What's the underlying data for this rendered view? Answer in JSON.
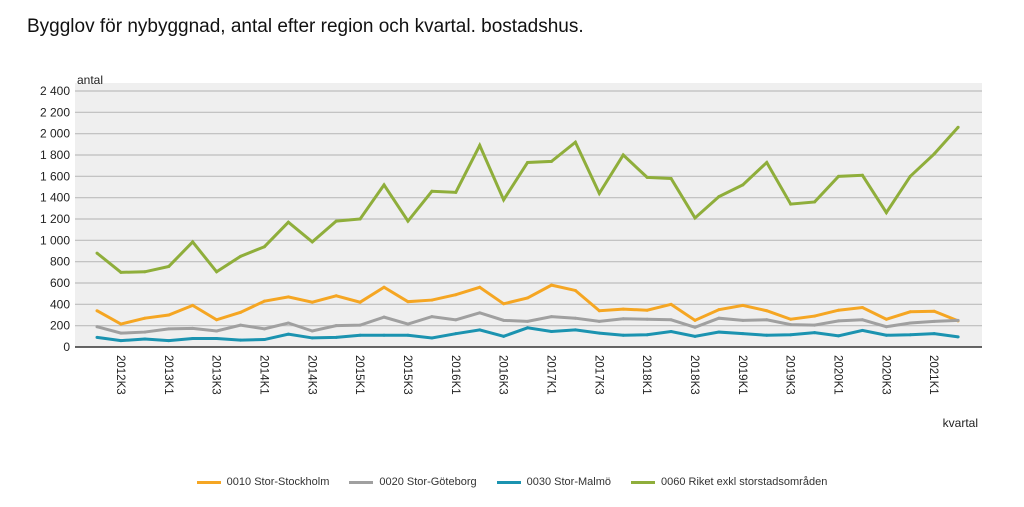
{
  "title": "Bygglov för nybyggnad, antal efter region och kvartal. bostadshus.",
  "chart_data": {
    "type": "line",
    "title": "Bygglov för nybyggnad, antal efter region och kvartal. bostadshus.",
    "xlabel": "kvartal",
    "ylabel": "antal",
    "ylim": [
      0,
      2400
    ],
    "yticks": [
      "0",
      "200",
      "400",
      "600",
      "800",
      "1 000",
      "1 200",
      "1 400",
      "1 600",
      "1 800",
      "2 000",
      "2 200",
      "2 400"
    ],
    "x": [
      "2012K2",
      "2012K3",
      "2012K4",
      "2013K1",
      "2013K2",
      "2013K3",
      "2013K4",
      "2014K1",
      "2014K2",
      "2014K3",
      "2014K4",
      "2015K1",
      "2015K2",
      "2015K3",
      "2015K4",
      "2016K1",
      "2016K2",
      "2016K3",
      "2016K4",
      "2017K1",
      "2017K2",
      "2017K3",
      "2017K4",
      "2018K1",
      "2018K2",
      "2018K3",
      "2018K4",
      "2019K1",
      "2019K2",
      "2019K3",
      "2019K4",
      "2020K1",
      "2020K2",
      "2020K3",
      "2020K4",
      "2021K1",
      "2021K2"
    ],
    "xtick_labels": [
      "2012K3",
      "2013K1",
      "2013K3",
      "2014K1",
      "2014K3",
      "2015K1",
      "2015K3",
      "2016K1",
      "2016K3",
      "2017K1",
      "2017K3",
      "2018K1",
      "2018K3",
      "2019K1",
      "2019K3",
      "2020K1",
      "2020K3",
      "2021K1"
    ],
    "grid": true,
    "legend": "bottom",
    "series": [
      {
        "name": "0010 Stor-Stockholm",
        "color": "#f5a623",
        "values": [
          340,
          215,
          270,
          300,
          390,
          255,
          325,
          430,
          470,
          420,
          480,
          420,
          560,
          425,
          440,
          490,
          560,
          405,
          460,
          580,
          530,
          340,
          355,
          345,
          400,
          250,
          350,
          390,
          340,
          260,
          290,
          345,
          370,
          260,
          330,
          335,
          245
        ]
      },
      {
        "name": "0020 Stor-Göteborg",
        "color": "#a0a0a0",
        "values": [
          190,
          130,
          140,
          170,
          175,
          150,
          205,
          170,
          225,
          150,
          200,
          205,
          280,
          215,
          285,
          255,
          320,
          250,
          240,
          285,
          270,
          240,
          265,
          260,
          255,
          185,
          270,
          250,
          255,
          210,
          205,
          245,
          255,
          190,
          225,
          240,
          250
        ]
      },
      {
        "name": "0030 Stor-Malmö",
        "color": "#1b93b0",
        "values": [
          90,
          60,
          75,
          60,
          80,
          80,
          65,
          70,
          120,
          85,
          90,
          110,
          110,
          110,
          85,
          125,
          160,
          100,
          180,
          145,
          160,
          130,
          110,
          115,
          145,
          100,
          140,
          125,
          110,
          115,
          135,
          105,
          155,
          110,
          115,
          125,
          95
        ]
      },
      {
        "name": "0060 Riket exkl storstadsområden",
        "color": "#8fae3b",
        "values": [
          880,
          700,
          705,
          755,
          985,
          705,
          850,
          940,
          1170,
          985,
          1180,
          1200,
          1520,
          1180,
          1460,
          1450,
          1890,
          1380,
          1730,
          1740,
          1920,
          1440,
          1800,
          1590,
          1580,
          1210,
          1410,
          1520,
          1730,
          1340,
          1360,
          1600,
          1610,
          1260,
          1600,
          1810,
          2060
        ]
      }
    ]
  }
}
